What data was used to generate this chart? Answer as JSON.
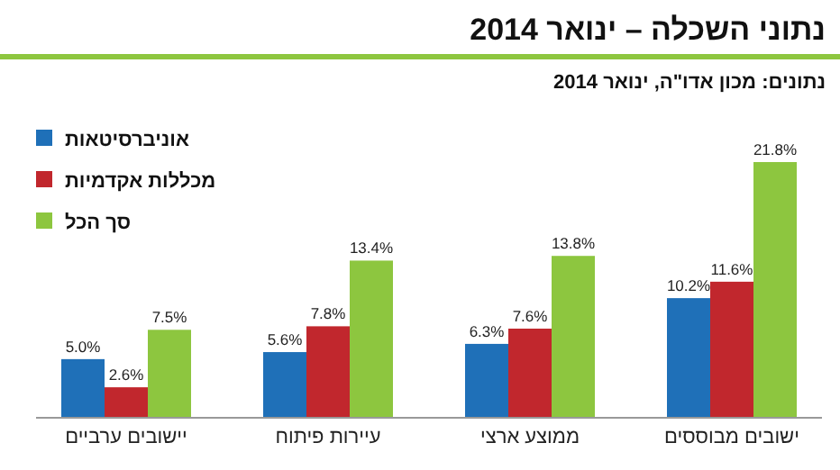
{
  "chart_data": {
    "type": "bar",
    "title": "נתוני השכלה – ינואר 2014",
    "subtitle": "נתונים: מכון אדו\"ה, ינואר 2014",
    "legend": "top left",
    "categories": [
      "יישובים ערביים",
      "עיירות פיתוח",
      "ממוצע ארצי",
      "ישובים מבוססים"
    ],
    "series": [
      {
        "name": "אוניברסיטאות",
        "color": "#1f70b8",
        "values": [
          5.0,
          5.6,
          6.3,
          10.2
        ],
        "value_labels": [
          "5.0%",
          "5.6%",
          "6.3%",
          "10.2%"
        ]
      },
      {
        "name": "מכללות אקדמיות",
        "color": "#c1272d",
        "values": [
          2.6,
          7.8,
          7.6,
          11.6
        ],
        "value_labels": [
          "2.6%",
          "7.8%",
          "7.6%",
          "11.6%"
        ]
      },
      {
        "name": "סך הכל",
        "color": "#8dc63f",
        "values": [
          7.5,
          13.4,
          13.8,
          21.8
        ],
        "value_labels": [
          "7.5%",
          "13.4%",
          "13.8%",
          "21.8%"
        ]
      }
    ]
  }
}
